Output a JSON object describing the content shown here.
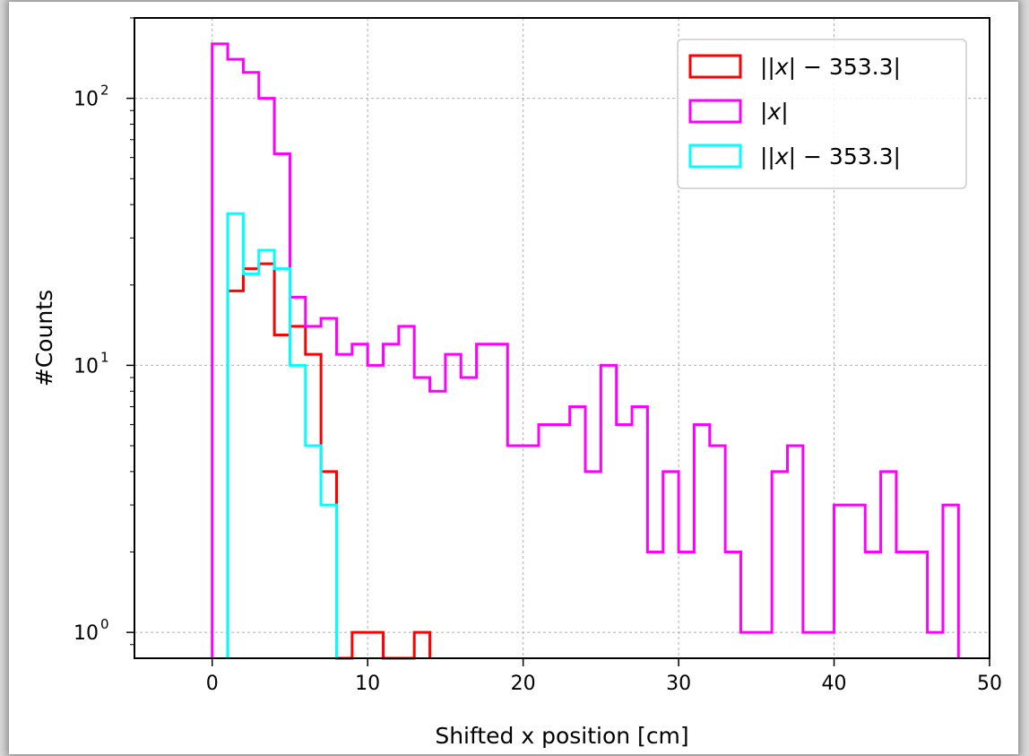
{
  "chart_data": {
    "type": "histogram-step",
    "title": "",
    "xlabel": "Shifted x position [cm]",
    "ylabel": "#Counts",
    "xlim": [
      -5,
      50
    ],
    "ylim": [
      0.8,
      200
    ],
    "yscale": "log",
    "grid": true,
    "legend_position": "top-right",
    "x_ticks": [
      0,
      10,
      20,
      30,
      40,
      50
    ],
    "y_ticks": [
      {
        "value": 1,
        "base": "10",
        "exp": "0"
      },
      {
        "value": 10,
        "base": "10",
        "exp": "1"
      },
      {
        "value": 100,
        "base": "10",
        "exp": "2"
      }
    ],
    "series": [
      {
        "name": "|",
        "name_mid": "x",
        "name_suffix": " − 353.3|",
        "color": "#ff0000",
        "edges": [
          1,
          2,
          3,
          4,
          5,
          6,
          7,
          8,
          9,
          10,
          11,
          12,
          13,
          14
        ],
        "counts": [
          19,
          23,
          24,
          13,
          14,
          11,
          4,
          0,
          1,
          1,
          0,
          0,
          1
        ]
      },
      {
        "name": "",
        "name_mid": "x",
        "name_suffix": "",
        "color": "#ff00ff",
        "edges": [
          0,
          1,
          2,
          3,
          4,
          5,
          6,
          7,
          8,
          9,
          10,
          11,
          12,
          13,
          14,
          15,
          16,
          17,
          18,
          19,
          20,
          21,
          22,
          23,
          24,
          25,
          26,
          27,
          28,
          29,
          30,
          31,
          32,
          33,
          34,
          35,
          36,
          37,
          38,
          39,
          40,
          41,
          42,
          43,
          44,
          45,
          46,
          47,
          48
        ],
        "counts": [
          160,
          140,
          125,
          100,
          62,
          18,
          14,
          15,
          11,
          12,
          10,
          12,
          14,
          9,
          8,
          11,
          9,
          12,
          12,
          5,
          5,
          6,
          6,
          7,
          4,
          10,
          6,
          7,
          2,
          4,
          2,
          6,
          5,
          2,
          1,
          1,
          4,
          5,
          1,
          1,
          3,
          3,
          2,
          4,
          2,
          2,
          1,
          3
        ]
      },
      {
        "name": "|",
        "name_mid": "x",
        "name_suffix": " − 353.3|",
        "color": "#00ffff",
        "edges": [
          1,
          2,
          3,
          4,
          5,
          6,
          7,
          8
        ],
        "counts": [
          37,
          22,
          27,
          23,
          10,
          5,
          3
        ]
      }
    ]
  }
}
